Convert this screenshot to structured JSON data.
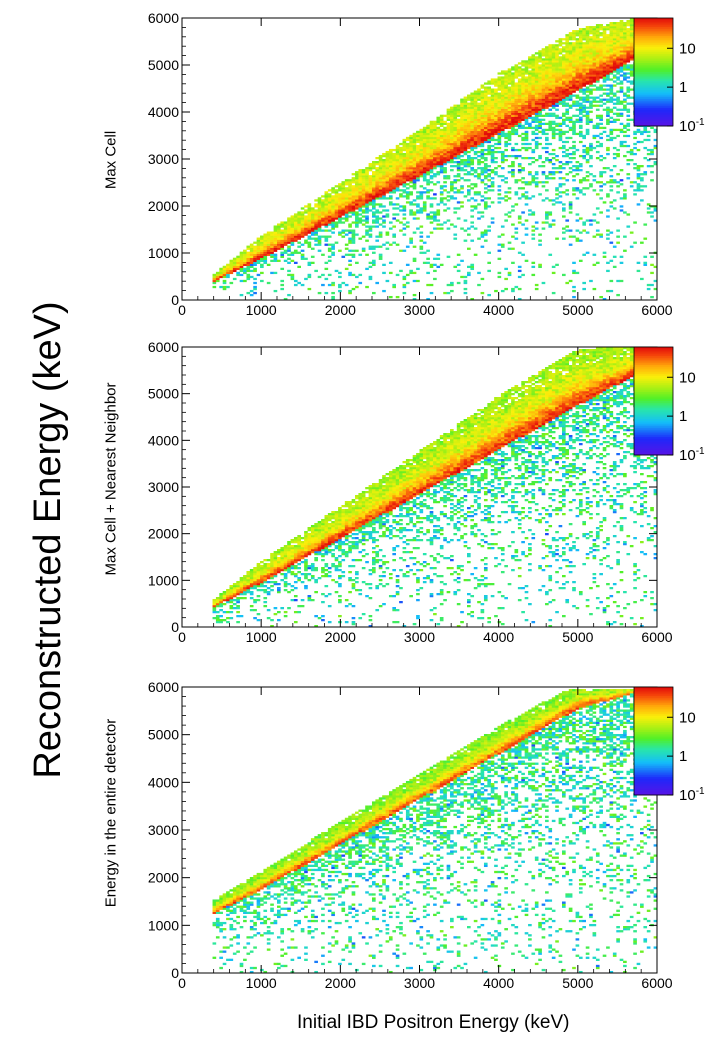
{
  "figure": {
    "ylabel": "Reconstructed Energy (keV)",
    "xlabel": "Initial IBD Positron Energy (keV)"
  },
  "chart_data": [
    {
      "type": "heatmap",
      "panel_label": "Max Cell",
      "x_range": [
        0,
        6000
      ],
      "y_range": [
        0,
        6000
      ],
      "x_ticks": [
        0,
        1000,
        2000,
        3000,
        4000,
        5000,
        6000
      ],
      "y_ticks": [
        0,
        1000,
        2000,
        3000,
        4000,
        5000,
        6000
      ],
      "x_tick_labels": [
        "0",
        "1000",
        "2000",
        "3000",
        "4000",
        "5000",
        "6000"
      ],
      "y_tick_labels": [
        "0",
        "1000",
        "2000",
        "3000",
        "4000",
        "5000",
        "6000"
      ],
      "colorbar": {
        "scale": "log",
        "range": [
          0.1,
          60
        ],
        "tick_labels": [
          "10",
          "1",
          "10-1"
        ]
      },
      "x_start": 400,
      "x_end": 6000,
      "ridge": {
        "x": [
          400,
          1000,
          2000,
          3000,
          4000,
          5000,
          6000
        ],
        "y": [
          400,
          880,
          1760,
          2640,
          3540,
          4450,
          5400
        ]
      },
      "upper_band": {
        "x": [
          400,
          1000,
          2000,
          3000,
          4000,
          5000,
          6000
        ],
        "y": [
          520,
          1300,
          2400,
          3500,
          4650,
          5600,
          6000
        ]
      },
      "peak_count": 55,
      "sparse_region": "below ridge down to y=0"
    },
    {
      "type": "heatmap",
      "panel_label": "Max Cell + Nearest Neighbor",
      "x_range": [
        0,
        6000
      ],
      "y_range": [
        0,
        6000
      ],
      "x_ticks": [
        0,
        1000,
        2000,
        3000,
        4000,
        5000,
        6000
      ],
      "y_ticks": [
        0,
        1000,
        2000,
        3000,
        4000,
        5000,
        6000
      ],
      "x_tick_labels": [
        "0",
        "1000",
        "2000",
        "3000",
        "4000",
        "5000",
        "6000"
      ],
      "y_tick_labels": [
        "0",
        "1000",
        "2000",
        "3000",
        "4000",
        "5000",
        "6000"
      ],
      "colorbar": {
        "scale": "log",
        "range": [
          0.1,
          60
        ],
        "tick_labels": [
          "10",
          "1",
          "10-1"
        ]
      },
      "x_start": 400,
      "x_end": 6000,
      "ridge": {
        "x": [
          400,
          1000,
          2000,
          3000,
          4000,
          5000,
          6000
        ],
        "y": [
          420,
          950,
          1900,
          2850,
          3800,
          4750,
          5650
        ]
      },
      "upper_band": {
        "x": [
          400,
          1000,
          2000,
          3000,
          4000,
          5000,
          6000
        ],
        "y": [
          560,
          1350,
          2500,
          3650,
          4800,
          5800,
          6000
        ]
      },
      "peak_count": 45,
      "sparse_region": "below ridge down to y=0"
    },
    {
      "type": "heatmap",
      "panel_label": "Energy in the entire detector",
      "x_range": [
        0,
        6000
      ],
      "y_range": [
        0,
        6000
      ],
      "x_ticks": [
        0,
        1000,
        2000,
        3000,
        4000,
        5000,
        6000
      ],
      "y_ticks": [
        0,
        1000,
        2000,
        3000,
        4000,
        5000,
        6000
      ],
      "x_tick_labels": [
        "0",
        "1000",
        "2000",
        "3000",
        "4000",
        "5000",
        "6000"
      ],
      "y_tick_labels": [
        "0",
        "1000",
        "2000",
        "3000",
        "4000",
        "5000",
        "6000"
      ],
      "colorbar": {
        "scale": "log",
        "range": [
          0.1,
          60
        ],
        "tick_labels": [
          "10",
          "1",
          "10-1"
        ]
      },
      "x_start": 400,
      "x_end": 6000,
      "ridge": {
        "x": [
          400,
          1000,
          2000,
          3000,
          4000,
          5000,
          6000
        ],
        "y": [
          1250,
          1750,
          2700,
          3650,
          4600,
          5550,
          6000
        ]
      },
      "upper_band": {
        "x": [
          400,
          1000,
          2000,
          3000,
          4000,
          5000,
          6000
        ],
        "y": [
          1500,
          2100,
          3100,
          4100,
          5100,
          6000,
          6000
        ]
      },
      "peak_count": 35,
      "sparse_region": "below ridge down to y=0"
    }
  ]
}
